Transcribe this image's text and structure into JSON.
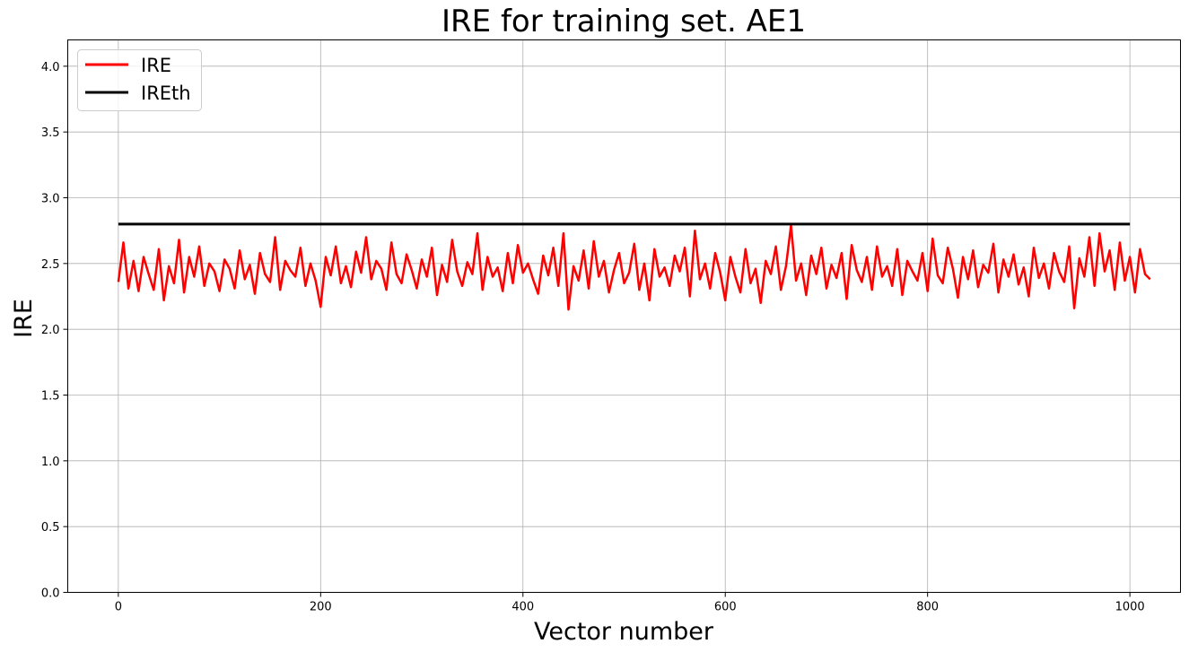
{
  "chart_data": {
    "type": "line",
    "title": "IRE for training set. AE1",
    "xlabel": "Vector number",
    "ylabel": "IRE",
    "xlim": [
      -50,
      1050
    ],
    "ylim": [
      0,
      4.2
    ],
    "xticks": [
      0,
      200,
      400,
      600,
      800,
      1000
    ],
    "yticks": [
      0.0,
      0.5,
      1.0,
      1.5,
      2.0,
      2.5,
      3.0,
      3.5,
      4.0
    ],
    "grid": true,
    "legend_position": "top-left",
    "series": [
      {
        "name": "IRE",
        "color": "#ff0000",
        "x_start": 0,
        "x_step": 5,
        "values": [
          2.36,
          2.66,
          2.31,
          2.52,
          2.29,
          2.55,
          2.42,
          2.3,
          2.61,
          2.22,
          2.48,
          2.35,
          2.68,
          2.28,
          2.55,
          2.4,
          2.63,
          2.33,
          2.5,
          2.44,
          2.29,
          2.53,
          2.46,
          2.31,
          2.6,
          2.38,
          2.49,
          2.27,
          2.58,
          2.42,
          2.36,
          2.7,
          2.3,
          2.52,
          2.45,
          2.4,
          2.62,
          2.33,
          2.5,
          2.37,
          2.17,
          2.55,
          2.41,
          2.63,
          2.35,
          2.48,
          2.32,
          2.59,
          2.43,
          2.7,
          2.38,
          2.52,
          2.46,
          2.3,
          2.66,
          2.42,
          2.35,
          2.57,
          2.45,
          2.31,
          2.53,
          2.4,
          2.62,
          2.26,
          2.49,
          2.36,
          2.68,
          2.44,
          2.33,
          2.51,
          2.42,
          2.73,
          2.3,
          2.55,
          2.4,
          2.47,
          2.29,
          2.58,
          2.35,
          2.64,
          2.43,
          2.5,
          2.38,
          2.27,
          2.56,
          2.41,
          2.62,
          2.33,
          2.73,
          2.15,
          2.48,
          2.37,
          2.6,
          2.31,
          2.67,
          2.4,
          2.52,
          2.28,
          2.45,
          2.58,
          2.35,
          2.43,
          2.65,
          2.3,
          2.5,
          2.22,
          2.61,
          2.4,
          2.47,
          2.33,
          2.56,
          2.44,
          2.62,
          2.25,
          2.75,
          2.38,
          2.5,
          2.31,
          2.58,
          2.43,
          2.22,
          2.55,
          2.4,
          2.28,
          2.61,
          2.35,
          2.46,
          2.2,
          2.52,
          2.42,
          2.63,
          2.3,
          2.48,
          2.79,
          2.37,
          2.5,
          2.26,
          2.56,
          2.42,
          2.62,
          2.31,
          2.49,
          2.39,
          2.58,
          2.23,
          2.64,
          2.45,
          2.36,
          2.55,
          2.3,
          2.63,
          2.4,
          2.48,
          2.33,
          2.61,
          2.26,
          2.52,
          2.44,
          2.37,
          2.58,
          2.29,
          2.69,
          2.41,
          2.35,
          2.62,
          2.46,
          2.24,
          2.55,
          2.38,
          2.6,
          2.32,
          2.49,
          2.43,
          2.65,
          2.28,
          2.53,
          2.4,
          2.57,
          2.34,
          2.47,
          2.25,
          2.62,
          2.39,
          2.5,
          2.31,
          2.58,
          2.44,
          2.36,
          2.63,
          2.16,
          2.54,
          2.4,
          2.7,
          2.33,
          2.73,
          2.44,
          2.6,
          2.3,
          2.66,
          2.37,
          2.55,
          2.28,
          2.61,
          2.42,
          2.38
        ]
      },
      {
        "name": "IREth",
        "color": "#000000",
        "x": [
          0,
          1000
        ],
        "values": [
          2.8,
          2.8
        ]
      }
    ]
  }
}
